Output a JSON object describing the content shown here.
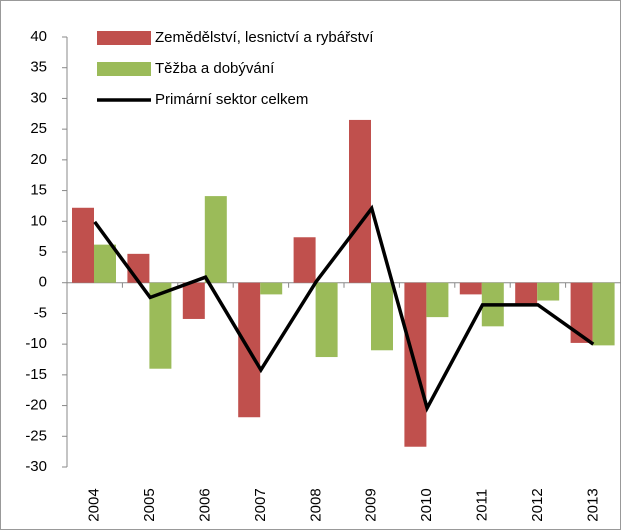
{
  "chart_data": {
    "type": "bar",
    "categories": [
      "2004",
      "2005",
      "2006",
      "2007",
      "2008",
      "2009",
      "2010",
      "2011",
      "2012",
      "2013"
    ],
    "series": [
      {
        "name": "Zemědělství, lesnictví a rybářství",
        "type": "bar",
        "color": "#c0504d",
        "values": [
          12.2,
          4.7,
          -5.9,
          -21.9,
          7.4,
          26.5,
          -26.7,
          -1.9,
          -3.5,
          -9.8
        ]
      },
      {
        "name": "Těžba a dobývání",
        "type": "bar",
        "color": "#9bbb59",
        "values": [
          6.2,
          -14,
          14.1,
          -1.9,
          -12.1,
          -11,
          -5.6,
          -7.1,
          -2.9,
          -10.2
        ]
      },
      {
        "name": "Primární sektor celkem",
        "type": "line",
        "color": "#000000",
        "values": [
          9.9,
          -2.4,
          0.9,
          -14.2,
          0.2,
          12.1,
          -20.4,
          -3.6,
          -3.6,
          -10
        ]
      }
    ],
    "ylim": [
      -30,
      40
    ],
    "yticks": [
      -30,
      -25,
      -20,
      -15,
      -10,
      -5,
      0,
      5,
      10,
      15,
      20,
      25,
      30,
      35,
      40
    ],
    "legend": "top-left",
    "grid": false
  }
}
